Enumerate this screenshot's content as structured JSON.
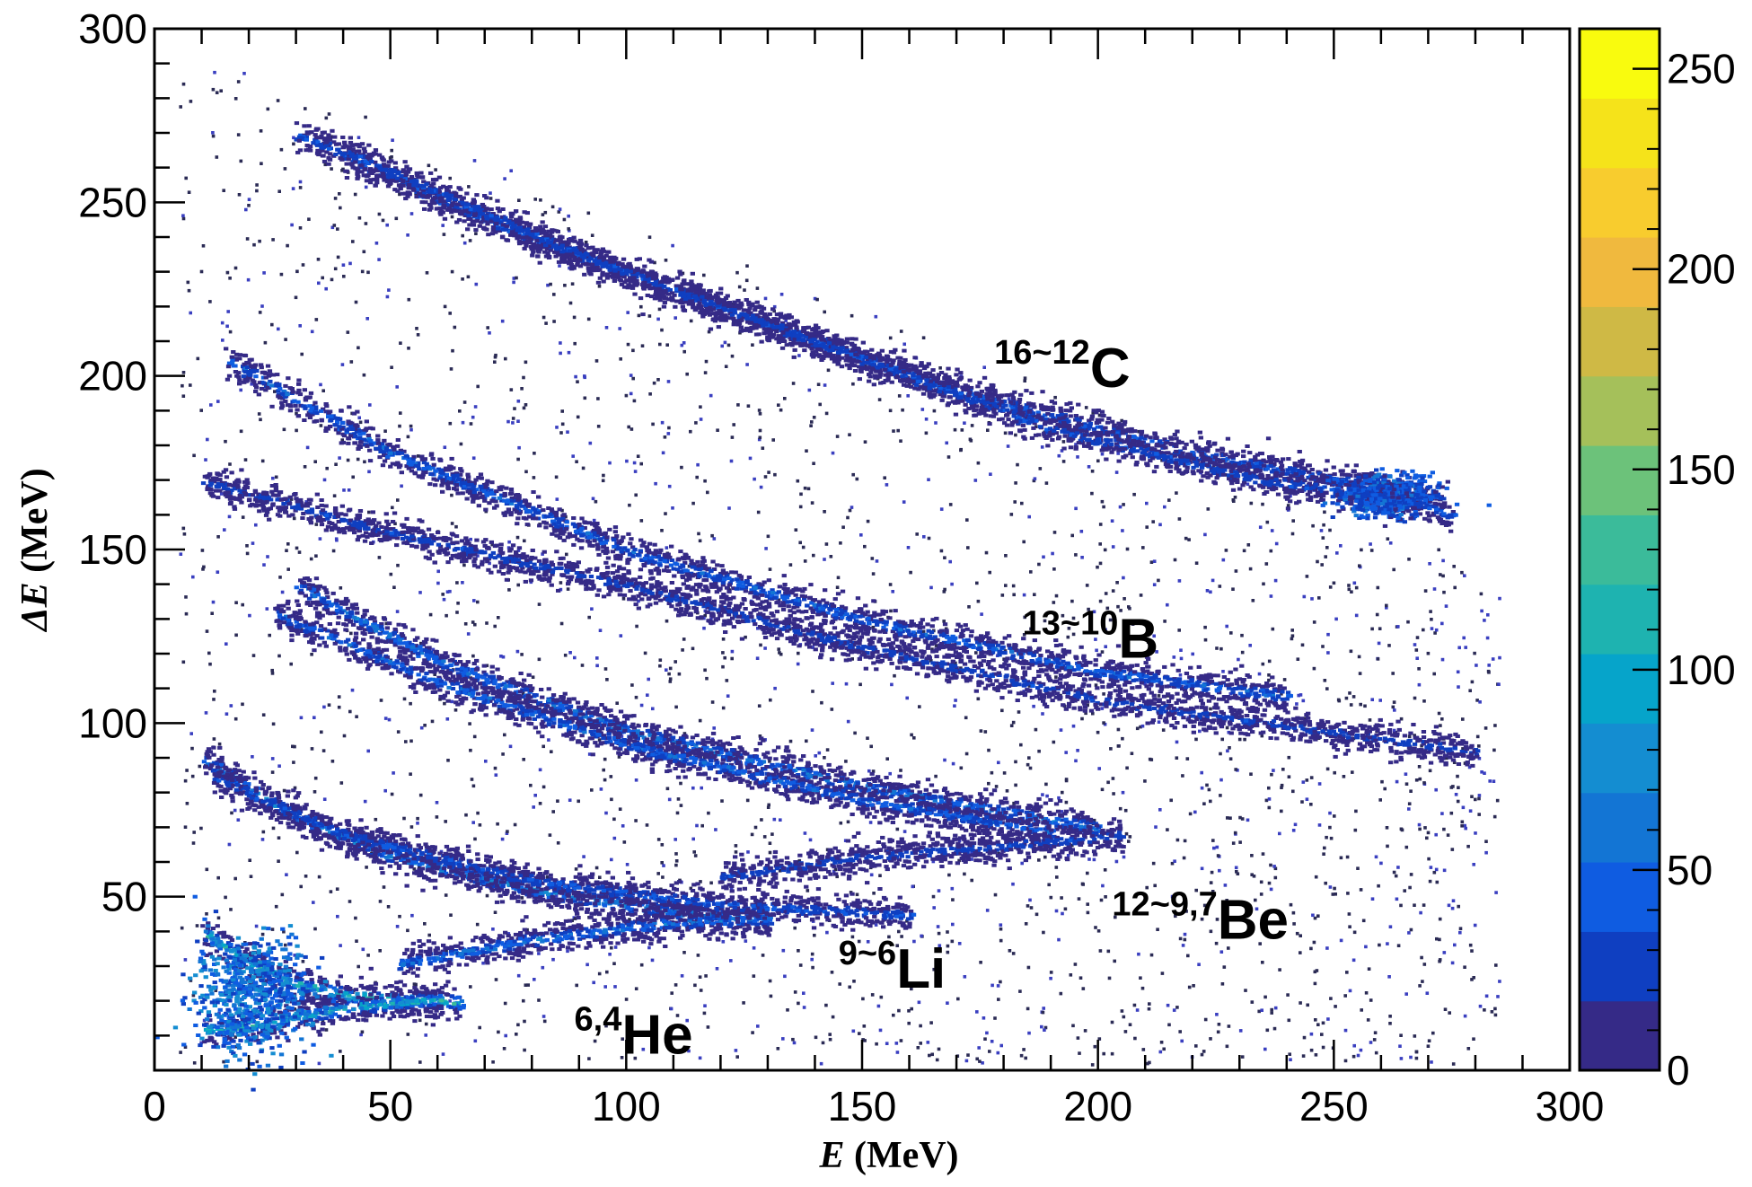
{
  "chart_data": {
    "type": "heatmap",
    "title": "",
    "xlabel_italic": "E",
    "xlabel_unit": " (MeV)",
    "ylabel_italic": "ΔE",
    "ylabel_unit": " (MeV)",
    "xlim": [
      0,
      300
    ],
    "ylim": [
      0,
      300
    ],
    "x_ticks": [
      "0",
      "50",
      "100",
      "150",
      "200",
      "250",
      "300"
    ],
    "y_ticks": [
      "50",
      "100",
      "150",
      "200",
      "250",
      "300"
    ],
    "colorbar": {
      "range": [
        0,
        260
      ],
      "ticks": [
        "0",
        "50",
        "100",
        "150",
        "200",
        "250"
      ],
      "colors": [
        "#352a87",
        "#0f3fc1",
        "#0f5ce1",
        "#1375d4",
        "#148dd1",
        "#06a4ca",
        "#1eb3b0",
        "#3bbb9a",
        "#6cc27a",
        "#a5c05a",
        "#cfb945",
        "#f0b93e",
        "#f8cc2e",
        "#f5e31a",
        "#f9fb0e"
      ]
    },
    "annotations": [
      {
        "sup": "16~12",
        "main": "C",
        "x": 178,
        "y": 202
      },
      {
        "sup": "13~10",
        "main": "B",
        "x": 184,
        "y": 124
      },
      {
        "sup": "12~9,7",
        "main": "Be",
        "x": 203,
        "y": 43
      },
      {
        "sup": "9~6",
        "main": "Li",
        "x": 145,
        "y": 29
      },
      {
        "sup": "6,4",
        "main": "He",
        "x": 89,
        "y": 10
      }
    ],
    "bands": [
      {
        "isotope": "He",
        "points": [
          [
            10,
            40
          ],
          [
            20,
            31
          ],
          [
            30,
            25
          ],
          [
            40,
            22
          ],
          [
            50,
            21
          ],
          [
            65,
            20
          ]
        ],
        "peak_counts": 120
      },
      {
        "isotope": "He",
        "points": [
          [
            10,
            12
          ],
          [
            20,
            13
          ],
          [
            30,
            16
          ],
          [
            45,
            19
          ],
          [
            60,
            21
          ]
        ],
        "peak_counts": 110
      },
      {
        "isotope": "Li",
        "points": [
          [
            10,
            90
          ],
          [
            30,
            73
          ],
          [
            50,
            62
          ],
          [
            80,
            52
          ],
          [
            110,
            46
          ],
          [
            130,
            44
          ]
        ],
        "peak_counts": 70
      },
      {
        "isotope": "Li",
        "points": [
          [
            52,
            31
          ],
          [
            80,
            38
          ],
          [
            110,
            43
          ],
          [
            130,
            44
          ]
        ],
        "peak_counts": 60
      },
      {
        "isotope": "Be",
        "points": [
          [
            12,
            85
          ],
          [
            40,
            68
          ],
          [
            80,
            55
          ],
          [
            120,
            48
          ],
          [
            160,
            45
          ]
        ],
        "peak_counts": 40
      },
      {
        "isotope": "Be",
        "points": [
          [
            30,
            140
          ],
          [
            60,
            118
          ],
          [
            100,
            98
          ],
          [
            150,
            82
          ],
          [
            200,
            70
          ]
        ],
        "peak_counts": 60
      },
      {
        "isotope": "Be",
        "points": [
          [
            25,
            132
          ],
          [
            60,
            112
          ],
          [
            100,
            94
          ],
          [
            150,
            78
          ],
          [
            190,
            69
          ]
        ],
        "peak_counts": 50
      },
      {
        "isotope": "Be",
        "points": [
          [
            120,
            56
          ],
          [
            150,
            62
          ],
          [
            180,
            65
          ],
          [
            205,
            68
          ]
        ],
        "peak_counts": 30
      },
      {
        "isotope": "B",
        "points": [
          [
            15,
            205
          ],
          [
            50,
            178
          ],
          [
            100,
            150
          ],
          [
            150,
            130
          ],
          [
            200,
            115
          ],
          [
            240,
            108
          ]
        ],
        "peak_counts": 50
      },
      {
        "isotope": "B",
        "points": [
          [
            10,
            170
          ],
          [
            50,
            155
          ],
          [
            100,
            140
          ],
          [
            150,
            122
          ],
          [
            200,
            107
          ],
          [
            280,
            92
          ]
        ],
        "peak_counts": 30
      },
      {
        "isotope": "C",
        "points": [
          [
            30,
            270
          ],
          [
            70,
            245
          ],
          [
            120,
            220
          ],
          [
            170,
            196
          ],
          [
            220,
            178
          ],
          [
            260,
            168
          ],
          [
            275,
            160
          ]
        ],
        "peak_counts": 40
      },
      {
        "isotope": "C",
        "points": [
          [
            40,
            265
          ],
          [
            90,
            235
          ],
          [
            140,
            210
          ],
          [
            190,
            185
          ],
          [
            235,
            170
          ],
          [
            265,
            165
          ]
        ],
        "peak_counts": 35
      }
    ],
    "hotspots": [
      {
        "x": 261,
        "y": 166,
        "counts": 80
      },
      {
        "x": 20,
        "y": 22,
        "counts": 120
      }
    ],
    "grid": false,
    "legend": "none"
  }
}
